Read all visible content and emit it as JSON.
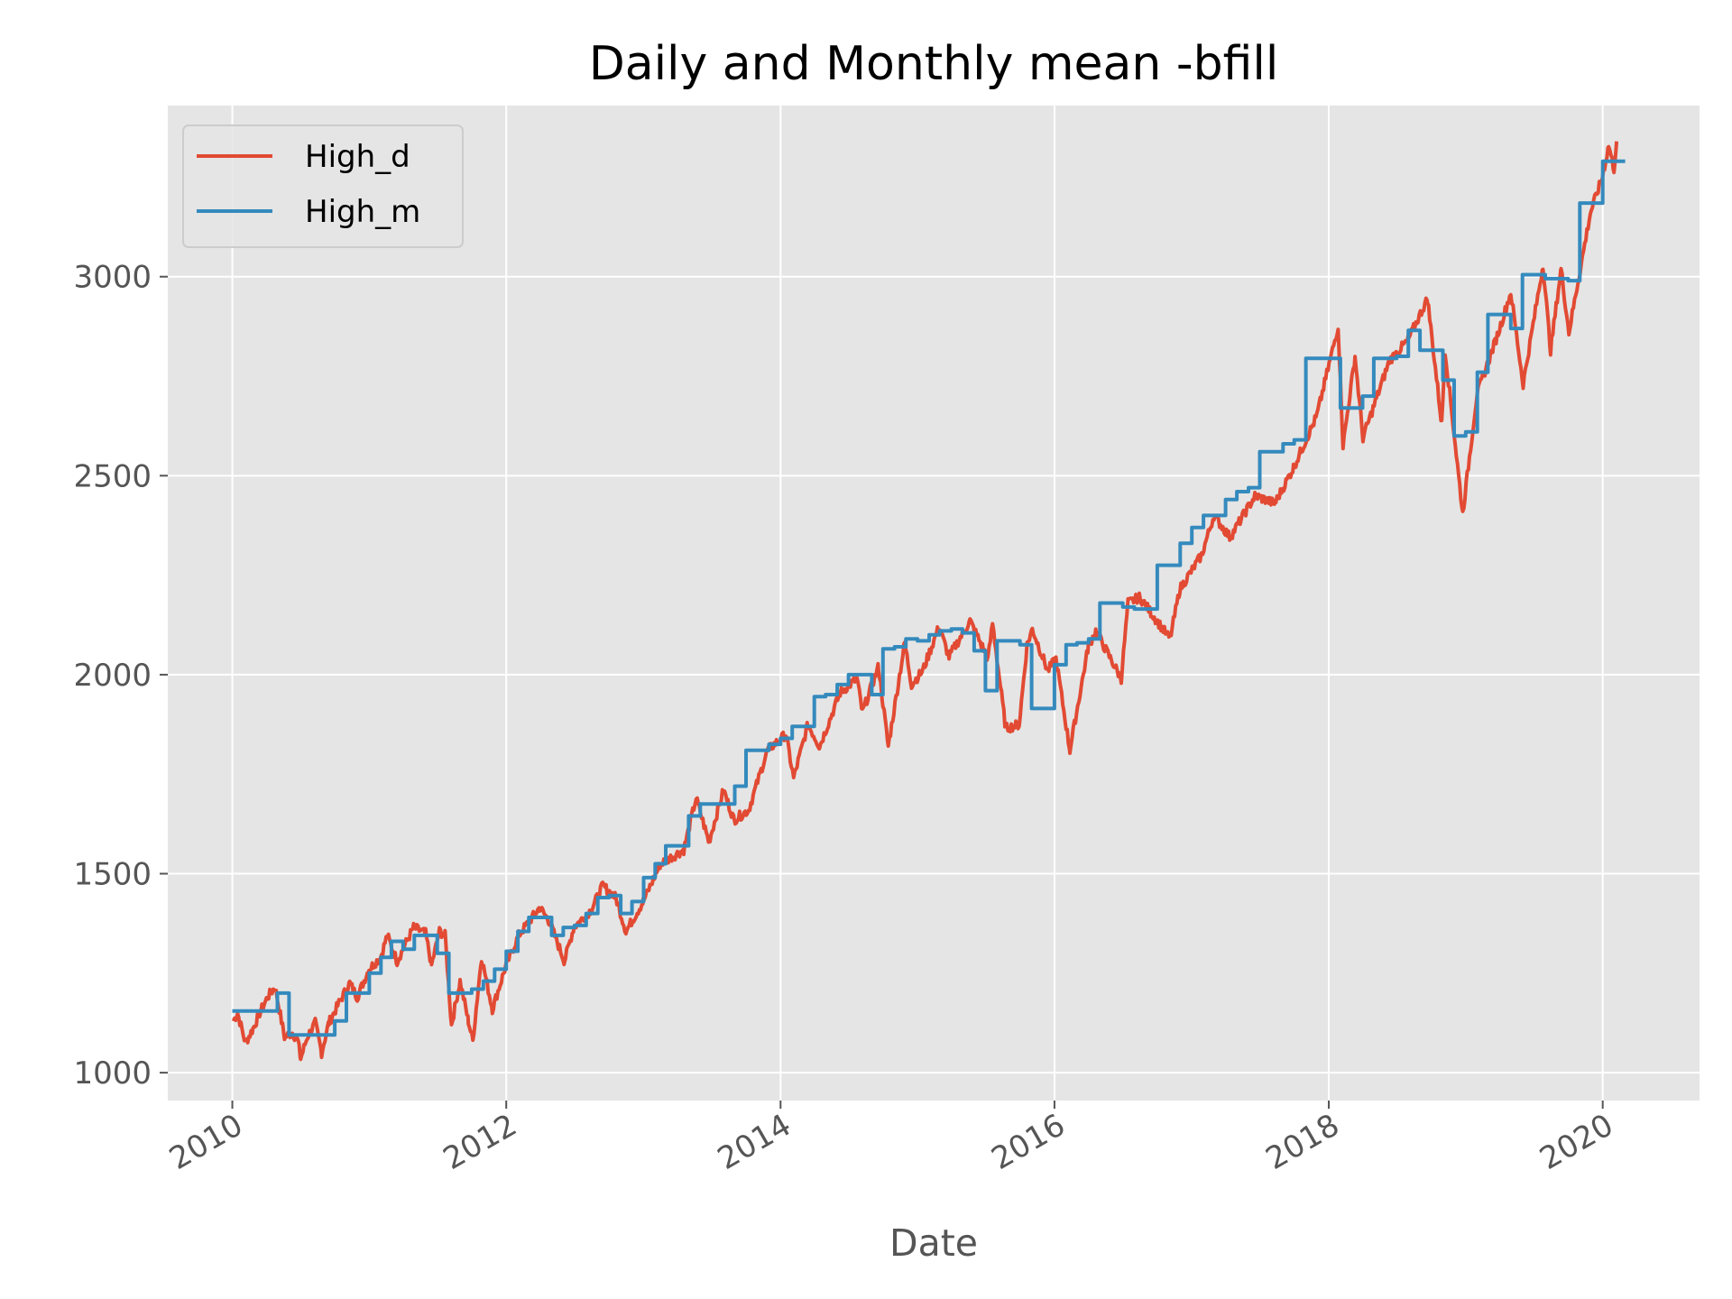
{
  "chart_data": {
    "type": "line",
    "title": "Daily and Monthly mean -bfill",
    "xlabel": "Date",
    "ylabel": "",
    "xlim": [
      "2009-07-13",
      "2020-09-15"
    ],
    "ylim": [
      930,
      3430
    ],
    "x_ticks": [
      "2010",
      "2012",
      "2014",
      "2016",
      "2018",
      "2020"
    ],
    "y_ticks": [
      1000,
      1500,
      2000,
      2500,
      3000
    ],
    "grid": true,
    "legend": {
      "position": "top-left"
    },
    "background_color": "#E5E5E5",
    "series": [
      {
        "name": "High_d",
        "color": "#E24A33",
        "style": "daily-line",
        "points": [
          [
            "2010-01-04",
            1130
          ],
          [
            "2010-01-15",
            1150
          ],
          [
            "2010-02-05",
            1075
          ],
          [
            "2010-02-25",
            1110
          ],
          [
            "2010-03-15",
            1150
          ],
          [
            "2010-04-05",
            1190
          ],
          [
            "2010-04-25",
            1215
          ],
          [
            "2010-05-06",
            1160
          ],
          [
            "2010-05-20",
            1090
          ],
          [
            "2010-06-10",
            1100
          ],
          [
            "2010-06-25",
            1080
          ],
          [
            "2010-07-02",
            1035
          ],
          [
            "2010-07-20",
            1090
          ],
          [
            "2010-08-10",
            1125
          ],
          [
            "2010-08-27",
            1050
          ],
          [
            "2010-09-15",
            1125
          ],
          [
            "2010-10-15",
            1180
          ],
          [
            "2010-11-10",
            1225
          ],
          [
            "2010-11-30",
            1190
          ],
          [
            "2010-12-31",
            1260
          ],
          [
            "2011-01-31",
            1290
          ],
          [
            "2011-02-18",
            1345
          ],
          [
            "2011-03-16",
            1280
          ],
          [
            "2011-04-29",
            1365
          ],
          [
            "2011-05-31",
            1350
          ],
          [
            "2011-06-16",
            1270
          ],
          [
            "2011-07-07",
            1355
          ],
          [
            "2011-07-22",
            1345
          ],
          [
            "2011-08-08",
            1120
          ],
          [
            "2011-08-31",
            1230
          ],
          [
            "2011-09-22",
            1130
          ],
          [
            "2011-10-04",
            1080
          ],
          [
            "2011-10-27",
            1290
          ],
          [
            "2011-11-25",
            1160
          ],
          [
            "2011-12-30",
            1265
          ],
          [
            "2012-02-03",
            1345
          ],
          [
            "2012-03-30",
            1415
          ],
          [
            "2012-04-25",
            1380
          ],
          [
            "2012-06-04",
            1280
          ],
          [
            "2012-06-29",
            1365
          ],
          [
            "2012-08-15",
            1410
          ],
          [
            "2012-09-14",
            1470
          ],
          [
            "2012-10-19",
            1440
          ],
          [
            "2012-11-15",
            1355
          ],
          [
            "2012-12-31",
            1430
          ],
          [
            "2013-02-15",
            1525
          ],
          [
            "2013-04-18",
            1560
          ],
          [
            "2013-05-21",
            1690
          ],
          [
            "2013-06-24",
            1580
          ],
          [
            "2013-08-02",
            1710
          ],
          [
            "2013-08-30",
            1635
          ],
          [
            "2013-10-08",
            1660
          ],
          [
            "2013-11-27",
            1810
          ],
          [
            "2014-01-15",
            1850
          ],
          [
            "2014-02-05",
            1740
          ],
          [
            "2014-03-15",
            1875
          ],
          [
            "2014-04-15",
            1820
          ],
          [
            "2014-06-09",
            1955
          ],
          [
            "2014-07-24",
            1990
          ],
          [
            "2014-08-07",
            1905
          ],
          [
            "2014-09-19",
            2020
          ],
          [
            "2014-10-15",
            1820
          ],
          [
            "2014-11-28",
            2080
          ],
          [
            "2014-12-16",
            1975
          ],
          [
            "2015-01-15",
            2010
          ],
          [
            "2015-02-27",
            2120
          ],
          [
            "2015-03-26",
            2045
          ],
          [
            "2015-05-21",
            2135
          ],
          [
            "2015-07-08",
            2040
          ],
          [
            "2015-07-20",
            2130
          ],
          [
            "2015-08-24",
            1865
          ],
          [
            "2015-09-29",
            1875
          ],
          [
            "2015-10-20",
            2075
          ],
          [
            "2015-11-03",
            2115
          ],
          [
            "2015-12-14",
            2010
          ],
          [
            "2016-01-05",
            2040
          ],
          [
            "2016-02-11",
            1810
          ],
          [
            "2016-03-31",
            2070
          ],
          [
            "2016-04-20",
            2110
          ],
          [
            "2016-06-27",
            1990
          ],
          [
            "2016-07-15",
            2180
          ],
          [
            "2016-08-15",
            2195
          ],
          [
            "2016-11-04",
            2090
          ],
          [
            "2016-11-30",
            2215
          ],
          [
            "2017-01-27",
            2300
          ],
          [
            "2017-03-01",
            2400
          ],
          [
            "2017-04-13",
            2345
          ],
          [
            "2017-06-19",
            2450
          ],
          [
            "2017-08-10",
            2430
          ],
          [
            "2017-09-29",
            2520
          ],
          [
            "2017-11-30",
            2650
          ],
          [
            "2018-01-26",
            2875
          ],
          [
            "2018-02-08",
            2575
          ],
          [
            "2018-03-12",
            2800
          ],
          [
            "2018-04-02",
            2595
          ],
          [
            "2018-06-12",
            2790
          ],
          [
            "2018-07-31",
            2840
          ],
          [
            "2018-09-21",
            2945
          ],
          [
            "2018-10-29",
            2630
          ],
          [
            "2018-11-07",
            2815
          ],
          [
            "2018-12-24",
            2405
          ],
          [
            "2019-01-31",
            2705
          ],
          [
            "2019-03-29",
            2860
          ],
          [
            "2019-05-01",
            2960
          ],
          [
            "2019-06-03",
            2730
          ],
          [
            "2019-07-26",
            3030
          ],
          [
            "2019-08-15",
            2815
          ],
          [
            "2019-09-12",
            3020
          ],
          [
            "2019-10-03",
            2860
          ],
          [
            "2019-11-29",
            3160
          ],
          [
            "2019-12-31",
            3250
          ],
          [
            "2020-01-17",
            3330
          ],
          [
            "2020-01-31",
            3270
          ],
          [
            "2020-02-07",
            3340
          ]
        ]
      },
      {
        "name": "High_m",
        "color": "#348ABD",
        "style": "monthly-step",
        "monthly_values": [
          1155,
          1155,
          1155,
          1155,
          1200,
          1095,
          1095,
          1095,
          1095,
          1130,
          1200,
          1200,
          1250,
          1290,
          1330,
          1310,
          1345,
          1345,
          1300,
          1200,
          1200,
          1210,
          1230,
          1260,
          1305,
          1355,
          1390,
          1390,
          1345,
          1365,
          1370,
          1400,
          1440,
          1445,
          1400,
          1430,
          1490,
          1525,
          1570,
          1570,
          1645,
          1675,
          1675,
          1675,
          1720,
          1810,
          1810,
          1825,
          1840,
          1870,
          1870,
          1945,
          1950,
          1975,
          2000,
          2000,
          1950,
          2065,
          2070,
          2090,
          2085,
          2100,
          2110,
          2115,
          2105,
          2060,
          1960,
          2085,
          2085,
          2075,
          1915,
          1915,
          2025,
          2075,
          2080,
          2090,
          2180,
          2180,
          2170,
          2165,
          2165,
          2275,
          2275,
          2330,
          2370,
          2400,
          2400,
          2440,
          2460,
          2470,
          2560,
          2560,
          2580,
          2590,
          2795,
          2795,
          2795,
          2670,
          2670,
          2700,
          2795,
          2795,
          2800,
          2865,
          2815,
          2815,
          2740,
          2600,
          2610,
          2760,
          2905,
          2905,
          2870,
          3005,
          3005,
          2995,
          2995,
          2990,
          3185,
          3185,
          3290,
          3290
        ]
      }
    ]
  }
}
